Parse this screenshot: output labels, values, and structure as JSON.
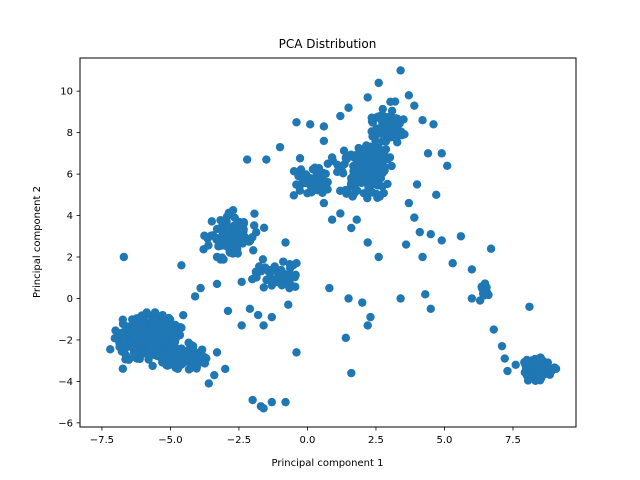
{
  "chart_data": {
    "type": "scatter",
    "title": "PCA Distribution",
    "xlabel": "Principal component 1",
    "ylabel": "Principal component 2",
    "xlim": [
      -8.3,
      9.8
    ],
    "ylim": [
      -6.2,
      11.6
    ],
    "xticks": [
      -7.5,
      -5.0,
      -2.5,
      0.0,
      2.5,
      5.0,
      7.5
    ],
    "xtick_labels": [
      "−7.5",
      "−5.0",
      "−2.5",
      "0.0",
      "2.5",
      "5.0",
      "7.5"
    ],
    "yticks": [
      -6,
      -4,
      -2,
      0,
      2,
      4,
      6,
      8,
      10
    ],
    "ytick_labels": [
      "−6",
      "−4",
      "−2",
      "0",
      "2",
      "4",
      "6",
      "8",
      "10"
    ],
    "grid": false,
    "marker_color": "#1f77b4",
    "clusters": [
      {
        "center": [
          -5.7,
          -1.9
        ],
        "spread": [
          0.85,
          0.75
        ],
        "count": 650
      },
      {
        "center": [
          -4.6,
          -2.9
        ],
        "spread": [
          0.7,
          0.45
        ],
        "count": 120
      },
      {
        "center": [
          -2.8,
          3.0
        ],
        "spread": [
          0.75,
          0.85
        ],
        "count": 110
      },
      {
        "center": [
          -1.2,
          1.1
        ],
        "spread": [
          0.7,
          0.45
        ],
        "count": 55
      },
      {
        "center": [
          2.2,
          6.2
        ],
        "spread": [
          0.65,
          0.9
        ],
        "count": 210
      },
      {
        "center": [
          2.9,
          8.2
        ],
        "spread": [
          0.5,
          0.8
        ],
        "count": 70
      },
      {
        "center": [
          0.3,
          5.8
        ],
        "spread": [
          0.75,
          0.8
        ],
        "count": 50
      },
      {
        "center": [
          8.4,
          -3.4
        ],
        "spread": [
          0.4,
          0.4
        ],
        "count": 140
      },
      {
        "center": [
          6.5,
          0.4
        ],
        "spread": [
          0.15,
          0.35
        ],
        "count": 12
      }
    ],
    "points": [
      [
        -6.7,
        2.0
      ],
      [
        -4.6,
        1.6
      ],
      [
        -3.3,
        2.0
      ],
      [
        -2.2,
        6.7
      ],
      [
        -1.5,
        6.7
      ],
      [
        -0.8,
        2.7
      ],
      [
        -0.4,
        1.7
      ],
      [
        0.8,
        0.5
      ],
      [
        -0.4,
        -2.6
      ],
      [
        -0.7,
        -0.3
      ],
      [
        -1.3,
        -0.9
      ],
      [
        -2.0,
        -4.9
      ],
      [
        -1.7,
        -5.2
      ],
      [
        -1.6,
        -5.3
      ],
      [
        -1.3,
        -5.0
      ],
      [
        -0.8,
        -5.0
      ],
      [
        -3.6,
        -4.1
      ],
      [
        -3.4,
        -3.7
      ],
      [
        -3.0,
        -3.4
      ],
      [
        -3.3,
        -2.6
      ],
      [
        1.6,
        -3.6
      ],
      [
        1.4,
        -1.9
      ],
      [
        2.3,
        -0.9
      ],
      [
        2.2,
        -1.3
      ],
      [
        2.0,
        -0.2
      ],
      [
        1.5,
        0.0
      ],
      [
        1.8,
        3.8
      ],
      [
        2.2,
        2.7
      ],
      [
        2.6,
        2.0
      ],
      [
        3.4,
        0.0
      ],
      [
        3.6,
        2.6
      ],
      [
        4.2,
        2.0
      ],
      [
        4.5,
        -0.5
      ],
      [
        4.3,
        0.2
      ],
      [
        4.9,
        2.8
      ],
      [
        5.3,
        1.7
      ],
      [
        6.0,
        1.4
      ],
      [
        6.0,
        0.0
      ],
      [
        6.3,
        -0.1
      ],
      [
        6.7,
        2.4
      ],
      [
        6.8,
        -1.5
      ],
      [
        7.1,
        -2.3
      ],
      [
        7.2,
        -2.9
      ],
      [
        7.3,
        -3.5
      ],
      [
        7.6,
        -3.2
      ],
      [
        8.1,
        -0.4
      ],
      [
        3.4,
        11.0
      ],
      [
        3.7,
        9.8
      ],
      [
        3.9,
        9.3
      ],
      [
        4.2,
        8.6
      ],
      [
        4.6,
        8.4
      ],
      [
        4.4,
        7.0
      ],
      [
        4.9,
        7.0
      ],
      [
        5.1,
        6.4
      ],
      [
        4.7,
        5.0
      ],
      [
        4.0,
        5.5
      ],
      [
        4.5,
        3.1
      ],
      [
        4.1,
        3.2
      ],
      [
        5.6,
        3.0
      ],
      [
        3.9,
        3.9
      ],
      [
        3.7,
        4.6
      ],
      [
        3.2,
        9.5
      ],
      [
        2.6,
        10.4
      ],
      [
        2.2,
        9.7
      ],
      [
        1.5,
        9.2
      ],
      [
        1.2,
        8.8
      ],
      [
        0.6,
        8.3
      ],
      [
        0.1,
        8.4
      ],
      [
        0.6,
        7.6
      ],
      [
        -0.4,
        8.5
      ],
      [
        -1.0,
        7.3
      ],
      [
        0.9,
        6.8
      ],
      [
        0.6,
        4.6
      ],
      [
        0.9,
        3.8
      ],
      [
        1.6,
        3.4
      ],
      [
        1.2,
        4.1
      ],
      [
        -3.3,
        0.7
      ],
      [
        -3.9,
        0.5
      ],
      [
        -4.1,
        0.1
      ],
      [
        -2.4,
        0.8
      ],
      [
        -2.9,
        -0.6
      ],
      [
        -2.4,
        -1.3
      ],
      [
        -2.1,
        -0.5
      ],
      [
        -1.6,
        -1.3
      ],
      [
        -1.8,
        -0.8
      ]
    ]
  }
}
